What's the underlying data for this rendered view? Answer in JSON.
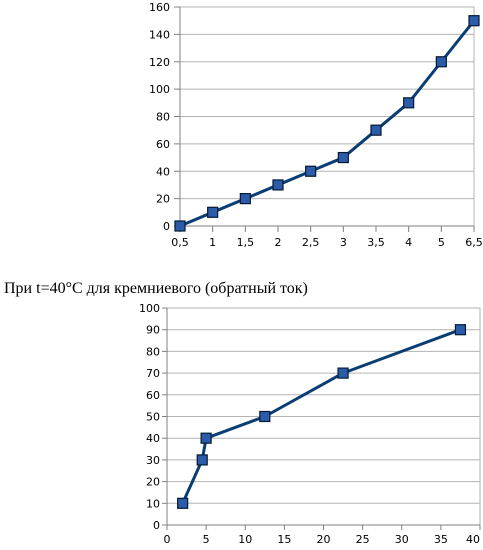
{
  "caption": "При t=40°C для кремниевого (обратный ток)",
  "colors": {
    "line": "#0a3d73",
    "marker": "#2a5caa",
    "marker_edge": "#061a33",
    "grid": "#b3b3b3",
    "axis": "#808080"
  },
  "chart_data": [
    {
      "type": "line",
      "categories": [
        "0,5",
        "1",
        "1,5",
        "2",
        "2,5",
        "3",
        "3,5",
        "4",
        "5",
        "6,5"
      ],
      "values": [
        0,
        10,
        20,
        30,
        40,
        50,
        70,
        90,
        120,
        150
      ],
      "ylim": [
        0,
        160
      ],
      "yticks": [
        "0",
        "20",
        "40",
        "60",
        "80",
        "100",
        "120",
        "140",
        "160"
      ],
      "title": "",
      "xlabel": "",
      "ylabel": "",
      "grid": "horizontal"
    },
    {
      "type": "scatter",
      "x": [
        2,
        4.5,
        5,
        12.5,
        22.5,
        37.5
      ],
      "y": [
        10,
        30,
        40,
        50,
        70,
        90
      ],
      "xlim": [
        0,
        40
      ],
      "ylim": [
        0,
        100
      ],
      "xticks": [
        "0",
        "5",
        "10",
        "15",
        "20",
        "25",
        "30",
        "35",
        "40"
      ],
      "yticks": [
        "0",
        "10",
        "20",
        "30",
        "40",
        "50",
        "60",
        "70",
        "80",
        "90",
        "100"
      ],
      "title": "",
      "xlabel": "",
      "ylabel": "",
      "grid": "horizontal"
    }
  ]
}
